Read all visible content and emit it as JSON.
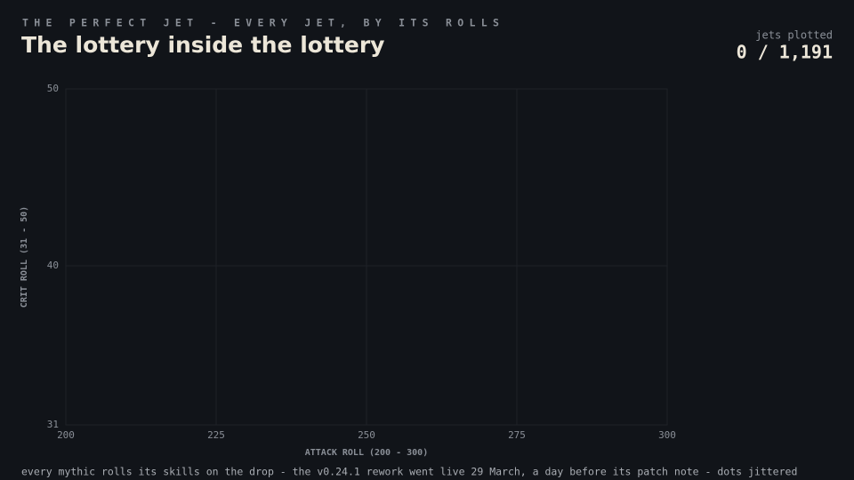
{
  "chart_data": {
    "type": "scatter",
    "eyebrow": "THE PERFECT JET - EVERY JET, BY ITS ROLLS",
    "title": "The lottery inside the lottery",
    "counter_label": "jets plotted",
    "counter": "0 / 1,191",
    "x_label": "ATTACK ROLL (200 - 300)",
    "y_label": "CRIT ROLL (31 - 50)",
    "note": "every mythic rolls its skills on the drop - the v0.24.1 rework went live 29 March, a day before its patch note - dots jittered",
    "xlim": [
      200,
      300
    ],
    "xticks": [
      200,
      225,
      250,
      275,
      300
    ],
    "ylim": [
      31,
      50
    ],
    "yticks": [
      31,
      40,
      50
    ],
    "grid": true
  }
}
